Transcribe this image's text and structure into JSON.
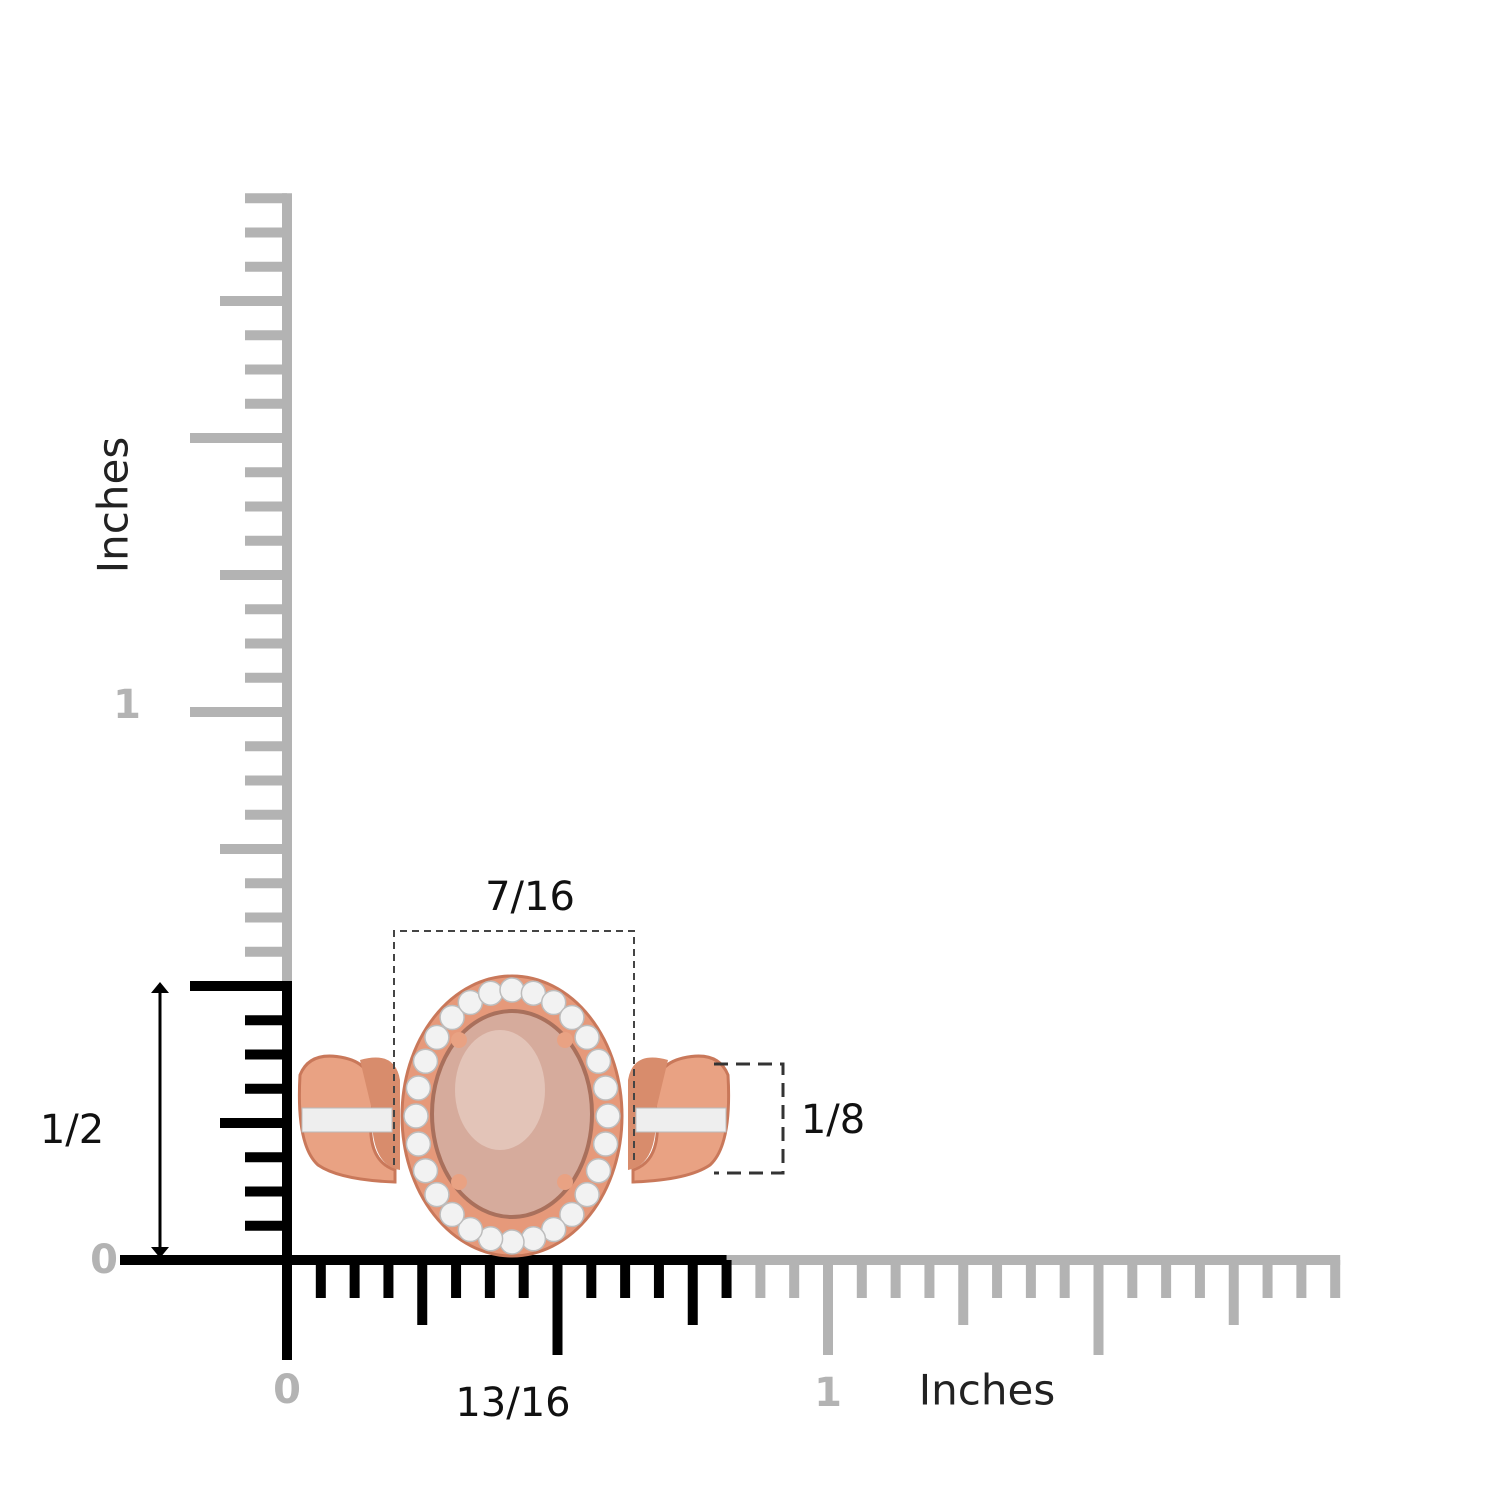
{
  "colors": {
    "ruler_gray": "#b3b3b3",
    "ruler_black": "#000000",
    "metal": "#e9a283",
    "metal_dark": "#c9785a",
    "stone": "#d9b0a0",
    "diamond": "#f2f2f2"
  },
  "ruler": {
    "unit": "Inches",
    "subdivisions_per_inch": 16,
    "max_inches": 1.9375,
    "highlight_width_inches": 0.8125,
    "highlight_height_inches": 0.5
  },
  "labels": {
    "x_axis_title": "Inches",
    "y_axis_title": "Inches",
    "x_tick_0": "0",
    "x_tick_1": "1",
    "y_tick_0": "0",
    "y_tick_1": "1",
    "width_total": "13/16",
    "height_total": "1/2",
    "center_width": "7/16",
    "shank_width": "1/8"
  },
  "icons": {
    "item": "ring-morganite-halo",
    "arrow": "double-arrow-vertical"
  }
}
